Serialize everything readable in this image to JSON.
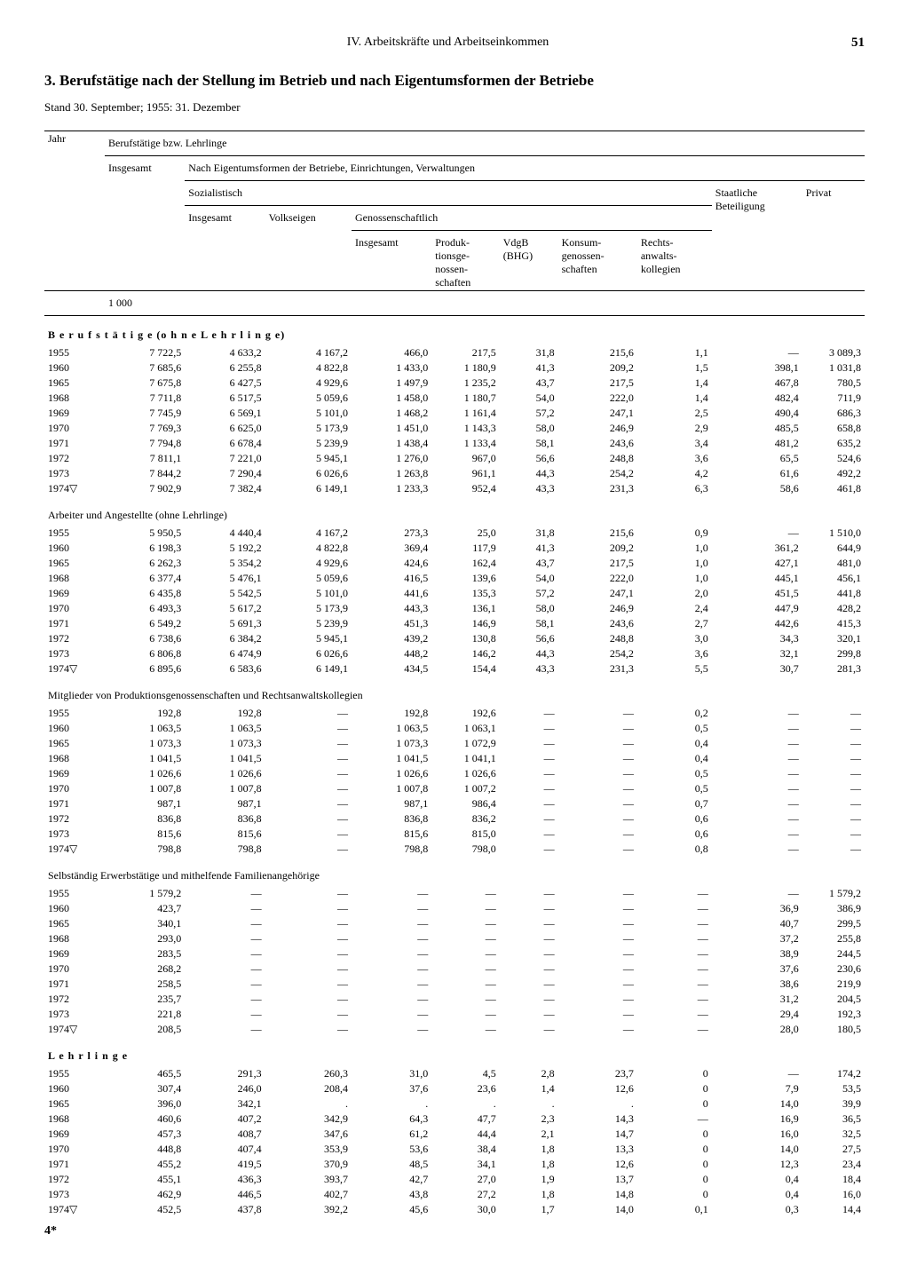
{
  "page": {
    "section_header": "IV. Arbeitskräfte und Arbeitseinkommen",
    "page_number": "51",
    "title": "3. Berufstätige nach der Stellung im Betrieb und nach Eigentumsformen der Betriebe",
    "subtitle": "Stand 30. September; 1955: 31. Dezember",
    "footer_mark": "4*"
  },
  "headers": {
    "jahr": "Jahr",
    "group_main": "Berufstätige bzw. Lehrlinge",
    "insgesamt": "Insgesamt",
    "group_eigentum": "Nach Eigentumsformen der Betriebe, Einrichtungen, Verwaltungen",
    "sozialistisch": "Sozialistisch",
    "soz_insgesamt": "Insgesamt",
    "volkseigen": "Volkseigen",
    "genossenschaftlich": "Genossenschaftlich",
    "gen_insgesamt": "Insgesamt",
    "produktions": "Produk-\ntionsge-\nnossen-\nschaften",
    "vdgb": "VdgB\n(BHG)",
    "konsum": "Konsum-\ngenossen-\nschaften",
    "rechts": "Rechts-\nanwalts-\nkollegien",
    "staatliche": "Staatliche\nBeteiligung",
    "privat": "Privat",
    "unit": "1 000"
  },
  "sections": [
    {
      "label": "B e r u f s t ä t i g e (o h n e L e h r l i n g e)",
      "bold": true,
      "rows": [
        [
          "1955",
          "7 722,5",
          "4 633,2",
          "4 167,2",
          "466,0",
          "217,5",
          "31,8",
          "215,6",
          "1,1",
          "—",
          "3 089,3"
        ],
        [
          "1960",
          "7 685,6",
          "6 255,8",
          "4 822,8",
          "1 433,0",
          "1 180,9",
          "41,3",
          "209,2",
          "1,5",
          "398,1",
          "1 031,8"
        ],
        [
          "1965",
          "7 675,8",
          "6 427,5",
          "4 929,6",
          "1 497,9",
          "1 235,2",
          "43,7",
          "217,5",
          "1,4",
          "467,8",
          "780,5"
        ],
        [
          "1968",
          "7 711,8",
          "6 517,5",
          "5 059,6",
          "1 458,0",
          "1 180,7",
          "54,0",
          "222,0",
          "1,4",
          "482,4",
          "711,9"
        ],
        [
          "1969",
          "7 745,9",
          "6 569,1",
          "5 101,0",
          "1 468,2",
          "1 161,4",
          "57,2",
          "247,1",
          "2,5",
          "490,4",
          "686,3"
        ],
        [
          "1970",
          "7 769,3",
          "6 625,0",
          "5 173,9",
          "1 451,0",
          "1 143,3",
          "58,0",
          "246,9",
          "2,9",
          "485,5",
          "658,8"
        ],
        [
          "1971",
          "7 794,8",
          "6 678,4",
          "5 239,9",
          "1 438,4",
          "1 133,4",
          "58,1",
          "243,6",
          "3,4",
          "481,2",
          "635,2"
        ],
        [
          "1972",
          "7 811,1",
          "7 221,0",
          "5 945,1",
          "1 276,0",
          "967,0",
          "56,6",
          "248,8",
          "3,6",
          "65,5",
          "524,6"
        ],
        [
          "1973",
          "7 844,2",
          "7 290,4",
          "6 026,6",
          "1 263,8",
          "961,1",
          "44,3",
          "254,2",
          "4,2",
          "61,6",
          "492,2"
        ],
        [
          "1974▽",
          "7 902,9",
          "7 382,4",
          "6 149,1",
          "1 233,3",
          "952,4",
          "43,3",
          "231,3",
          "6,3",
          "58,6",
          "461,8"
        ]
      ]
    },
    {
      "label": "Arbeiter und Angestellte (ohne Lehrlinge)",
      "bold": false,
      "rows": [
        [
          "1955",
          "5 950,5",
          "4 440,4",
          "4 167,2",
          "273,3",
          "25,0",
          "31,8",
          "215,6",
          "0,9",
          "—",
          "1 510,0"
        ],
        [
          "1960",
          "6 198,3",
          "5 192,2",
          "4 822,8",
          "369,4",
          "117,9",
          "41,3",
          "209,2",
          "1,0",
          "361,2",
          "644,9"
        ],
        [
          "1965",
          "6 262,3",
          "5 354,2",
          "4 929,6",
          "424,6",
          "162,4",
          "43,7",
          "217,5",
          "1,0",
          "427,1",
          "481,0"
        ],
        [
          "1968",
          "6 377,4",
          "5 476,1",
          "5 059,6",
          "416,5",
          "139,6",
          "54,0",
          "222,0",
          "1,0",
          "445,1",
          "456,1"
        ],
        [
          "1969",
          "6 435,8",
          "5 542,5",
          "5 101,0",
          "441,6",
          "135,3",
          "57,2",
          "247,1",
          "2,0",
          "451,5",
          "441,8"
        ],
        [
          "1970",
          "6 493,3",
          "5 617,2",
          "5 173,9",
          "443,3",
          "136,1",
          "58,0",
          "246,9",
          "2,4",
          "447,9",
          "428,2"
        ],
        [
          "1971",
          "6 549,2",
          "5 691,3",
          "5 239,9",
          "451,3",
          "146,9",
          "58,1",
          "243,6",
          "2,7",
          "442,6",
          "415,3"
        ],
        [
          "1972",
          "6 738,6",
          "6 384,2",
          "5 945,1",
          "439,2",
          "130,8",
          "56,6",
          "248,8",
          "3,0",
          "34,3",
          "320,1"
        ],
        [
          "1973",
          "6 806,8",
          "6 474,9",
          "6 026,6",
          "448,2",
          "146,2",
          "44,3",
          "254,2",
          "3,6",
          "32,1",
          "299,8"
        ],
        [
          "1974▽",
          "6 895,6",
          "6 583,6",
          "6 149,1",
          "434,5",
          "154,4",
          "43,3",
          "231,3",
          "5,5",
          "30,7",
          "281,3"
        ]
      ]
    },
    {
      "label": "Mitglieder von Produktionsgenossenschaften und Rechtsanwaltskollegien",
      "bold": false,
      "rows": [
        [
          "1955",
          "192,8",
          "192,8",
          "—",
          "192,8",
          "192,6",
          "—",
          "—",
          "0,2",
          "—",
          "—"
        ],
        [
          "1960",
          "1 063,5",
          "1 063,5",
          "—",
          "1 063,5",
          "1 063,1",
          "—",
          "—",
          "0,5",
          "—",
          "—"
        ],
        [
          "1965",
          "1 073,3",
          "1 073,3",
          "—",
          "1 073,3",
          "1 072,9",
          "—",
          "—",
          "0,4",
          "—",
          "—"
        ],
        [
          "1968",
          "1 041,5",
          "1 041,5",
          "—",
          "1 041,5",
          "1 041,1",
          "—",
          "—",
          "0,4",
          "—",
          "—"
        ],
        [
          "1969",
          "1 026,6",
          "1 026,6",
          "—",
          "1 026,6",
          "1 026,6",
          "—",
          "—",
          "0,5",
          "—",
          "—"
        ],
        [
          "1970",
          "1 007,8",
          "1 007,8",
          "—",
          "1 007,8",
          "1 007,2",
          "—",
          "—",
          "0,5",
          "—",
          "—"
        ],
        [
          "1971",
          "987,1",
          "987,1",
          "—",
          "987,1",
          "986,4",
          "—",
          "—",
          "0,7",
          "—",
          "—"
        ],
        [
          "1972",
          "836,8",
          "836,8",
          "—",
          "836,8",
          "836,2",
          "—",
          "—",
          "0,6",
          "—",
          "—"
        ],
        [
          "1973",
          "815,6",
          "815,6",
          "—",
          "815,6",
          "815,0",
          "—",
          "—",
          "0,6",
          "—",
          "—"
        ],
        [
          "1974▽",
          "798,8",
          "798,8",
          "—",
          "798,8",
          "798,0",
          "—",
          "—",
          "0,8",
          "—",
          "—"
        ]
      ]
    },
    {
      "label": "Selbständig Erwerbstätige und mithelfende Familienangehörige",
      "bold": false,
      "rows": [
        [
          "1955",
          "1 579,2",
          "—",
          "—",
          "—",
          "—",
          "—",
          "—",
          "—",
          "—",
          "1 579,2"
        ],
        [
          "1960",
          "423,7",
          "—",
          "—",
          "—",
          "—",
          "—",
          "—",
          "—",
          "36,9",
          "386,9"
        ],
        [
          "1965",
          "340,1",
          "—",
          "—",
          "—",
          "—",
          "—",
          "—",
          "—",
          "40,7",
          "299,5"
        ],
        [
          "1968",
          "293,0",
          "—",
          "—",
          "—",
          "—",
          "—",
          "—",
          "—",
          "37,2",
          "255,8"
        ],
        [
          "1969",
          "283,5",
          "—",
          "—",
          "—",
          "—",
          "—",
          "—",
          "—",
          "38,9",
          "244,5"
        ],
        [
          "1970",
          "268,2",
          "—",
          "—",
          "—",
          "—",
          "—",
          "—",
          "—",
          "37,6",
          "230,6"
        ],
        [
          "1971",
          "258,5",
          "—",
          "—",
          "—",
          "—",
          "—",
          "—",
          "—",
          "38,6",
          "219,9"
        ],
        [
          "1972",
          "235,7",
          "—",
          "—",
          "—",
          "—",
          "—",
          "—",
          "—",
          "31,2",
          "204,5"
        ],
        [
          "1973",
          "221,8",
          "—",
          "—",
          "—",
          "—",
          "—",
          "—",
          "—",
          "29,4",
          "192,3"
        ],
        [
          "1974▽",
          "208,5",
          "—",
          "—",
          "—",
          "—",
          "—",
          "—",
          "—",
          "28,0",
          "180,5"
        ]
      ]
    },
    {
      "label": "L e h r l i n g e",
      "bold": true,
      "rows": [
        [
          "1955",
          "465,5",
          "291,3",
          "260,3",
          "31,0",
          "4,5",
          "2,8",
          "23,7",
          "0",
          "—",
          "174,2"
        ],
        [
          "1960",
          "307,4",
          "246,0",
          "208,4",
          "37,6",
          "23,6",
          "1,4",
          "12,6",
          "0",
          "7,9",
          "53,5"
        ],
        [
          "1965",
          "396,0",
          "342,1",
          ".",
          ".",
          ".",
          ".",
          ".",
          "0",
          "14,0",
          "39,9"
        ],
        [
          "1968",
          "460,6",
          "407,2",
          "342,9",
          "64,3",
          "47,7",
          "2,3",
          "14,3",
          "—",
          "16,9",
          "36,5"
        ],
        [
          "1969",
          "457,3",
          "408,7",
          "347,6",
          "61,2",
          "44,4",
          "2,1",
          "14,7",
          "0",
          "16,0",
          "32,5"
        ],
        [
          "1970",
          "448,8",
          "407,4",
          "353,9",
          "53,6",
          "38,4",
          "1,8",
          "13,3",
          "0",
          "14,0",
          "27,5"
        ],
        [
          "1971",
          "455,2",
          "419,5",
          "370,9",
          "48,5",
          "34,1",
          "1,8",
          "12,6",
          "0",
          "12,3",
          "23,4"
        ],
        [
          "1972",
          "455,1",
          "436,3",
          "393,7",
          "42,7",
          "27,0",
          "1,9",
          "13,7",
          "0",
          "0,4",
          "18,4"
        ],
        [
          "1973",
          "462,9",
          "446,5",
          "402,7",
          "43,8",
          "27,2",
          "1,8",
          "14,8",
          "0",
          "0,4",
          "16,0"
        ],
        [
          "1974▽",
          "452,5",
          "437,8",
          "392,2",
          "45,6",
          "30,0",
          "1,7",
          "14,0",
          "0,1",
          "0,3",
          "14,4"
        ]
      ]
    }
  ]
}
